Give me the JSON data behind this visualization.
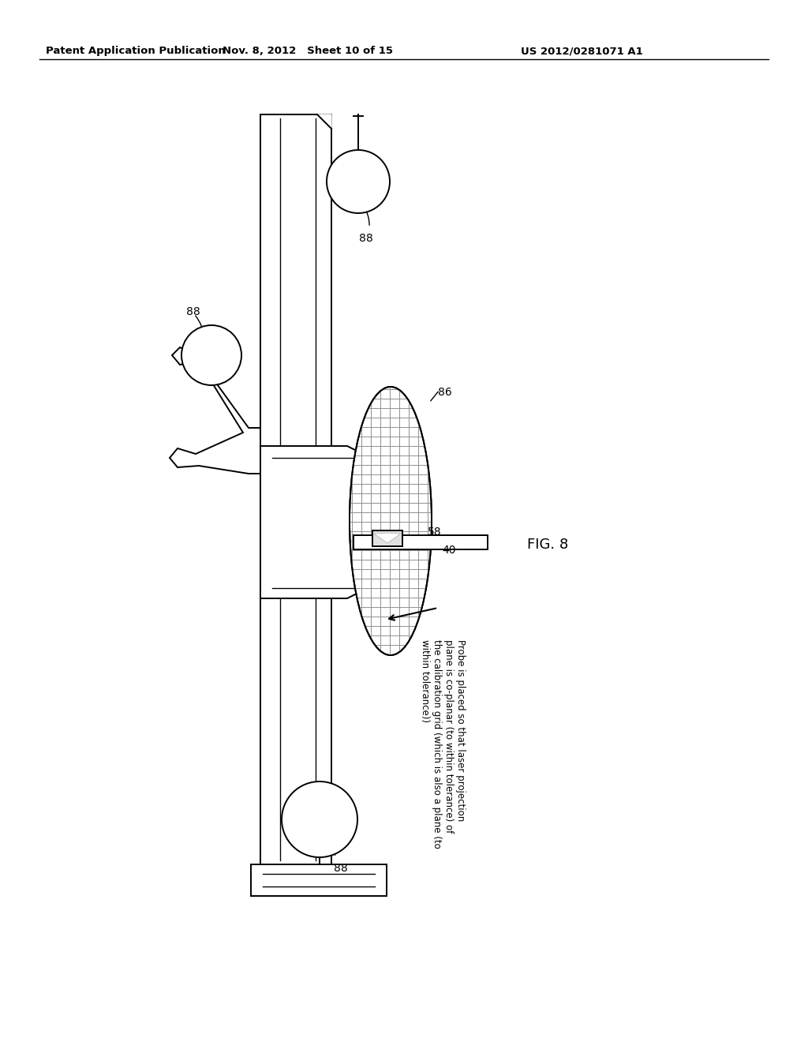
{
  "background_color": "#ffffff",
  "header_left": "Patent Application Publication",
  "header_center": "Nov. 8, 2012   Sheet 10 of 15",
  "header_right": "US 2012/0281071 A1",
  "fig_label": "FIG. 8",
  "annotation_text": "Probe is placed so that laser projection\nplane is co-planar (to within tolerance) of\nthe calibration grid (which is also a plane (to\nwithin tolerance))",
  "labels": {
    "88_top": "88",
    "88_mid": "88",
    "88_bot": "88",
    "86": "86",
    "58": "58",
    "40": "40"
  }
}
